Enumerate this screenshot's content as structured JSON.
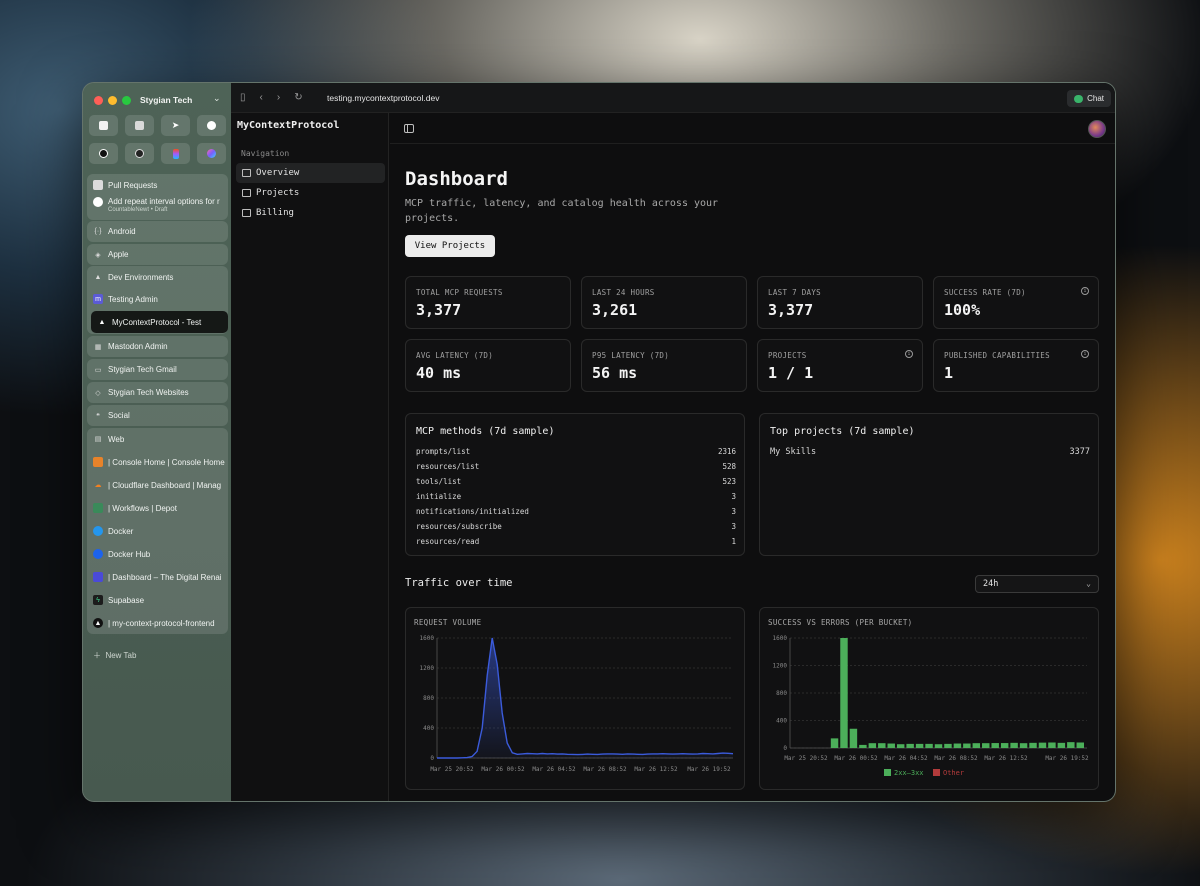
{
  "browser": {
    "workspace": "Stygian Tech",
    "url": "testing.mycontextprotocol.dev",
    "chat_label": "Chat",
    "new_tab_label": "New Tab",
    "pinned_icons": [
      "notion-icon",
      "calendar-icon",
      "send-icon",
      "github-icon",
      "circle-icon",
      "openai-icon",
      "figma-icon",
      "arc-icon"
    ],
    "tabs": {
      "pull_requests": "Pull Requests",
      "pr_title": "Add repeat interval options for r",
      "pr_sub": "CountableNewt • Draft",
      "android": "Android",
      "apple": "Apple",
      "dev_envs": "Dev Environments",
      "testing_admin": "Testing Admin",
      "mcp_test": "MyContextProtocol - Test",
      "mastodon": "Mastodon Admin",
      "gmail": "Stygian Tech Gmail",
      "websites": "Stygian Tech Websites",
      "social": "Social",
      "web": "Web",
      "console": "| Console Home | Console Home",
      "cloudflare": "| Cloudflare Dashboard | Manag",
      "workflows": "| Workflows | Depot",
      "docker": "Docker",
      "dockerhub": "Docker Hub",
      "dashboard": "| Dashboard – The Digital Renai",
      "supabase": "Supabase",
      "frontend": "| my-context-protocol-frontend"
    }
  },
  "app": {
    "brand": "MyContextProtocol",
    "nav_label": "Navigation",
    "nav": [
      "Overview",
      "Projects",
      "Billing"
    ],
    "title": "Dashboard",
    "description": "MCP traffic, latency, and catalog health across your projects.",
    "view_projects": "View Projects",
    "stats": [
      {
        "label": "TOTAL MCP REQUESTS",
        "value": "3,377"
      },
      {
        "label": "LAST 24 HOURS",
        "value": "3,261"
      },
      {
        "label": "LAST 7 DAYS",
        "value": "3,377"
      },
      {
        "label": "SUCCESS RATE (7D)",
        "value": "100%"
      },
      {
        "label": "AVG LATENCY (7D)",
        "value": "40 ms"
      },
      {
        "label": "P95 LATENCY (7D)",
        "value": "56 ms"
      },
      {
        "label": "PROJECTS",
        "value": "1 / 1"
      },
      {
        "label": "PUBLISHED CAPABILITIES",
        "value": "1"
      }
    ],
    "methods_title": "MCP methods (7d sample)",
    "methods": [
      {
        "name": "prompts/list",
        "count": "2316"
      },
      {
        "name": "resources/list",
        "count": "528"
      },
      {
        "name": "tools/list",
        "count": "523"
      },
      {
        "name": "initialize",
        "count": "3"
      },
      {
        "name": "notifications/initialized",
        "count": "3"
      },
      {
        "name": "resources/subscribe",
        "count": "3"
      },
      {
        "name": "resources/read",
        "count": "1"
      }
    ],
    "projects_title": "Top projects (7d sample)",
    "projects": [
      {
        "name": "My Skills",
        "count": "3377"
      }
    ],
    "traffic_title": "Traffic over time",
    "range": "24h"
  },
  "chart_data": [
    {
      "type": "area",
      "title": "REQUEST VOLUME",
      "ylim": [
        0,
        1600
      ],
      "yticks": [
        0,
        400,
        800,
        1200,
        1600
      ],
      "xticks": [
        "Mar 25 20:52",
        "Mar 26 00:52",
        "Mar 26 04:52",
        "Mar 26 08:52",
        "Mar 26 12:52",
        "Mar 26 19:52"
      ],
      "color": "#3b5bdb",
      "values": [
        0,
        0,
        0,
        0,
        0,
        2,
        5,
        20,
        90,
        400,
        1100,
        1600,
        1250,
        600,
        200,
        70,
        50,
        55,
        60,
        58,
        55,
        60,
        55,
        58,
        52,
        55,
        50,
        48,
        45,
        48,
        52,
        50,
        48,
        52,
        55,
        55,
        52,
        50,
        55,
        52,
        50,
        48,
        52,
        55,
        55,
        58,
        55,
        52,
        55,
        58,
        55,
        52,
        55,
        60,
        58,
        55,
        60,
        65,
        62,
        58
      ]
    },
    {
      "type": "bar",
      "title": "SUCCESS VS ERRORS (PER BUCKET)",
      "ylim": [
        0,
        1600
      ],
      "yticks": [
        0,
        400,
        800,
        1200,
        1600
      ],
      "xticks": [
        "Mar 25 20:52",
        "Mar 26 00:52",
        "Mar 26 04:52",
        "Mar 26 08:52",
        "Mar 26 12:52",
        "Mar 26 19:52"
      ],
      "legend": [
        "2xx–3xx",
        "Other"
      ],
      "colors": [
        "#4caf5a",
        "#b23b3b"
      ],
      "values": [
        0,
        0,
        0,
        0,
        140,
        1600,
        280,
        45,
        70,
        70,
        65,
        55,
        60,
        60,
        60,
        55,
        60,
        65,
        65,
        70,
        70,
        72,
        72,
        75,
        70,
        75,
        78,
        80,
        75,
        85,
        80
      ]
    }
  ]
}
